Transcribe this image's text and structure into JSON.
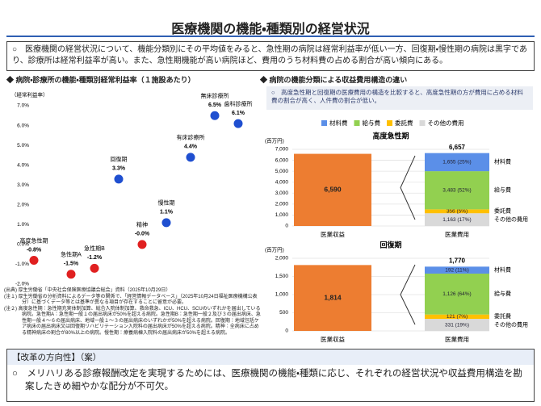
{
  "title": "医療機関の機能・種類別の経営状況",
  "summary": "○　医療機関の経営状況について、機能分類別にその平均値をみると、急性期の病院は経常利益率が低い一方、回復期・慢性期の病院は黒字であり、診療所は経常利益率が高い。また、急性期機能が高い病院ほど、費用のうち材料費の占める割合が高い傾向にある。",
  "left_heading": "◆ 病院・診療所の機能・種類別経常利益率（１施設あたり）",
  "right_heading": "◆ 病院の機能分類による収益費用構造の違い",
  "right_note": "○　高度急性期と回復期の医療費用の構造を比較すると、高度急性期の方が費用に占める材料費の割合が高く、人件費の割合が低い。",
  "notes": [
    "(出典) 厚生労働省「中央社会保険医療協議会総会」資料（2025年10月29日）",
    "(注１) 厚生労働省の分析資料によるデータ等の関係で、「経営情報データベース」（2025年10月24日福祉医療機構公表分）に基づくデータ等とは基準が異なる項目が存在することに留意が必要。",
    "(注２) 高度急性期：急性期充実体制加算、総合入院体制加算、救命救急、ICU、HCU、SCUのいずれかを届出している病院。急性期A：急性期一般１の届出病床が50%を超える病院。急性期B：急性期一般２及び３の届出病床、急性期一般４〜６の届出病床、地域一般１〜３の届出病床のいずれかが50%を超える病院。回復期：地域包括ケア病床の届出病床又は回復期リハビリテーション入院料の届出病床が50%を超える病院。精神：全病床に占める精神病床の割合が80%以上の病院。慢性期：療養病棟入院料の届出病床が50%を超える病院。"
  ],
  "reform": {
    "heading": "【改革の方向性】（案）",
    "text": "○　メリハリある診療報酬改定を実現するためには、医療機関の機能・種類に応じ、それぞれの経営状況や収益費用構造を勘案したきめ細やかな配分が不可欠。"
  },
  "chart_data": [
    {
      "type": "scatter",
      "y_label": "（経常利益率）",
      "categories": [
        "高度急性期",
        "急性期A",
        "急性期B",
        "回復期",
        "精神",
        "慢性期",
        "有床診療所",
        "無床診療所",
        "歯科診療所"
      ],
      "values": [
        -0.8,
        -1.5,
        -1.2,
        3.3,
        0,
        1.1,
        4.4,
        6.5,
        6.1
      ],
      "value_labels": [
        "-0.8%",
        "-1.5%",
        "-1.2%",
        "3.3%",
        "-0.0%",
        "1.1%",
        "4.4%",
        "6.5%",
        "6.1%"
      ],
      "colors": [
        "#e02020",
        "#e02020",
        "#e02020",
        "#1f4fd0",
        "#e02020",
        "#1f4fd0",
        "#1f4fd0",
        "#1f4fd0",
        "#1f4fd0"
      ],
      "ylim": [
        -2,
        7
      ],
      "yticks": [
        {
          "value": -2,
          "label": "-2.0%"
        },
        {
          "value": -1,
          "label": "-1.0%"
        },
        {
          "value": 0,
          "label": "0.0%"
        },
        {
          "value": 1,
          "label": "1.0%"
        },
        {
          "value": 2,
          "label": "2.0%"
        },
        {
          "value": 3,
          "label": "3.0%"
        },
        {
          "value": 4,
          "label": "4.0%"
        },
        {
          "value": 5,
          "label": "5.0%"
        },
        {
          "value": 6,
          "label": "6.0%"
        },
        {
          "value": 7,
          "label": "7.0%"
        }
      ]
    },
    {
      "type": "stacked_bar",
      "title": "高度急性期",
      "y_label": "(百万円)",
      "categories": [
        "医業収益",
        "医業費用"
      ],
      "revenue_values": [
        6590,
        null
      ],
      "revenue_labels": [
        "6,590",
        null
      ],
      "revenue_color": "#ed7d31",
      "series": [
        {
          "name": "材料費",
          "color": "#5b8fe8",
          "values": [
            null,
            1655
          ],
          "value_labels": [
            null,
            "1,655 (25%)"
          ]
        },
        {
          "name": "給与費",
          "color": "#92d050",
          "values": [
            null,
            3483
          ],
          "value_labels": [
            null,
            "3,483 (52%)"
          ]
        },
        {
          "name": "委託費",
          "color": "#ffc000",
          "values": [
            null,
            356
          ],
          "value_labels": [
            null,
            "356 (5%)"
          ]
        },
        {
          "name": "その他の費用",
          "color": "#d9d9d9",
          "values": [
            null,
            1163
          ],
          "value_labels": [
            null,
            "1,163 (17%)"
          ]
        }
      ],
      "total": {
        "value": 6657,
        "label": "6,657"
      },
      "ylim": [
        0,
        7000
      ],
      "yticks": [
        0,
        {
          "value": 1000,
          "label": "1,000"
        },
        {
          "value": 2000,
          "label": "2,000"
        },
        {
          "value": 3000,
          "label": "3,000"
        },
        {
          "value": 4000,
          "label": "4,000"
        },
        {
          "value": 5000,
          "label": "5,000"
        },
        {
          "value": 6000,
          "label": "6,000"
        },
        {
          "value": 7000,
          "label": "7,000"
        }
      ],
      "grid": true,
      "legend": "top"
    },
    {
      "type": "stacked_bar",
      "title": "回復期",
      "y_label": "(百万円)",
      "categories": [
        "医業収益",
        "医業費用"
      ],
      "revenue_values": [
        1814,
        null
      ],
      "revenue_labels": [
        "1,814",
        null
      ],
      "revenue_color": "#ed7d31",
      "series": [
        {
          "name": "材料費",
          "color": "#5b8fe8",
          "values": [
            null,
            192
          ],
          "value_labels": [
            null,
            "192 (11%)"
          ]
        },
        {
          "name": "給与費",
          "color": "#92d050",
          "values": [
            null,
            1126
          ],
          "value_labels": [
            null,
            "1,126 (64%)"
          ]
        },
        {
          "name": "委託費",
          "color": "#ffc000",
          "values": [
            null,
            121
          ],
          "value_labels": [
            null,
            "121 (7%)"
          ]
        },
        {
          "name": "その他の費用",
          "color": "#d9d9d9",
          "values": [
            null,
            331
          ],
          "value_labels": [
            null,
            "331 (19%)"
          ]
        }
      ],
      "total": {
        "value": 1770,
        "label": "1,770"
      },
      "ylim": [
        0,
        2000
      ],
      "yticks": [
        0,
        500,
        {
          "value": 1000,
          "label": "1,000"
        },
        {
          "value": 1500,
          "label": "1,500"
        },
        {
          "value": 2000,
          "label": "2,000"
        }
      ],
      "grid": true
    }
  ]
}
